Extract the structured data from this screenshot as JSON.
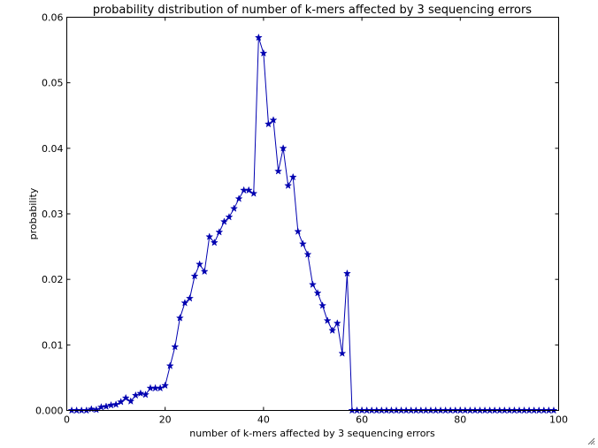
{
  "chart_data": {
    "type": "line",
    "title": "probability distribution of number of k-mers affected by 3 sequencing errors",
    "xlabel": "number of k-mers affected by 3 sequencing errors",
    "ylabel": "probability",
    "xlim": [
      0,
      100
    ],
    "ylim": [
      0,
      0.06
    ],
    "xticks": [
      "0",
      "20",
      "40",
      "60",
      "80",
      "100"
    ],
    "yticks": [
      "0.000",
      "0.01",
      "0.02",
      "0.03",
      "0.04",
      "0.05",
      "0.06"
    ],
    "grid": false,
    "marker": "star",
    "line_color": "#0000b0",
    "series": [
      {
        "x": [
          1,
          2,
          3,
          4,
          5,
          6,
          7,
          8,
          9,
          10,
          11,
          12,
          13,
          14,
          15,
          16,
          17,
          18,
          19,
          20,
          21,
          22,
          23,
          24,
          25,
          26,
          27,
          28,
          29,
          30,
          31,
          32,
          33,
          34,
          35,
          36,
          37,
          38,
          39,
          40,
          41,
          42,
          43,
          44,
          45,
          46,
          47,
          48,
          49,
          50,
          51,
          52,
          53,
          54,
          55,
          56,
          57,
          58,
          59,
          60,
          61,
          62,
          63,
          64,
          65,
          66,
          67,
          68,
          69,
          70,
          71,
          72,
          73,
          74,
          75,
          76,
          77,
          78,
          79,
          80,
          81,
          82,
          83,
          84,
          85,
          86,
          87,
          88,
          89,
          90,
          91,
          92,
          93,
          94,
          95,
          96,
          97,
          98,
          99
        ],
        "values": [
          0,
          0,
          0,
          0,
          0.0002,
          0.0001,
          0.0005,
          0.0006,
          0.0008,
          0.0009,
          0.0013,
          0.0019,
          0.0014,
          0.0023,
          0.0026,
          0.0024,
          0.0034,
          0.0034,
          0.0034,
          0.0038,
          0.0068,
          0.0097,
          0.0141,
          0.0164,
          0.0171,
          0.0205,
          0.0223,
          0.0212,
          0.0265,
          0.0256,
          0.0272,
          0.0288,
          0.0295,
          0.0308,
          0.0323,
          0.0336,
          0.0336,
          0.0331,
          0.0569,
          0.0545,
          0.0437,
          0.0443,
          0.0365,
          0.04,
          0.0343,
          0.0356,
          0.0273,
          0.0254,
          0.0238,
          0.0192,
          0.0179,
          0.016,
          0.0137,
          0.0122,
          0.0133,
          0.0087,
          0.0209,
          0,
          0,
          0,
          0,
          0,
          0,
          0,
          0,
          0,
          0,
          0,
          0,
          0,
          0,
          0,
          0,
          0,
          0,
          0,
          0,
          0,
          0,
          0,
          0,
          0,
          0,
          0,
          0,
          0,
          0,
          0,
          0,
          0,
          0,
          0,
          0,
          0,
          0,
          0,
          0,
          0,
          0
        ]
      }
    ]
  }
}
